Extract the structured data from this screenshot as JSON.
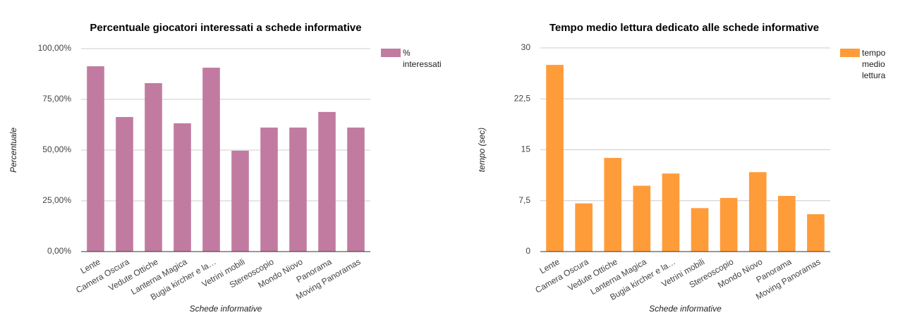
{
  "chart_data": [
    {
      "type": "bar",
      "title": "Percentuale giocatori interessati a schede informative",
      "x_label": "Schede informative",
      "y_label": "Percentuale",
      "categories": [
        "Lente",
        "Camera Oscura",
        "Vedute Ottiche",
        "Lanterna Magica",
        "Bugia kircher e la…",
        "Vetrini mobili",
        "Stereoscopio",
        "Mondo Niovo",
        "Panorama",
        "Moving Panoramas"
      ],
      "series": [
        {
          "name": "% interessati",
          "color": "#c27ba0",
          "values": [
            91.3,
            66.3,
            83.0,
            63.2,
            90.6,
            49.7,
            61.1,
            61.1,
            68.8,
            61.1
          ]
        }
      ],
      "ylim": [
        0,
        100
      ],
      "yticks": [
        {
          "value": 0,
          "label": "0,00%"
        },
        {
          "value": 25,
          "label": "25,00%"
        },
        {
          "value": 50,
          "label": "50,00%"
        },
        {
          "value": 75,
          "label": "75,00%"
        },
        {
          "value": 100,
          "label": "100,00%"
        }
      ],
      "grid": true
    },
    {
      "type": "bar",
      "title": "Tempo medio lettura dedicato alle schede informative",
      "x_label": "Schede informative",
      "y_label": "tempo (sec)",
      "categories": [
        "Lente",
        "Camera Oscura",
        "Vedute Ottiche",
        "Lanterna Magica",
        "Bugia kircher e la…",
        "Vetrini mobili",
        "Stereoscopio",
        "Mondo Niovo",
        "Panorama",
        "Moving Panoramas"
      ],
      "series": [
        {
          "name": "tempo medio lettura",
          "color": "#ff9c3a",
          "values": [
            27.5,
            7.1,
            13.8,
            9.7,
            11.5,
            6.4,
            7.9,
            11.7,
            8.2,
            5.5
          ]
        }
      ],
      "ylim": [
        0,
        30
      ],
      "yticks": [
        0,
        {
          "value": 7.5,
          "label": "7,5"
        },
        15,
        {
          "value": 22.5,
          "label": "22,5"
        },
        30
      ],
      "grid": true
    }
  ]
}
